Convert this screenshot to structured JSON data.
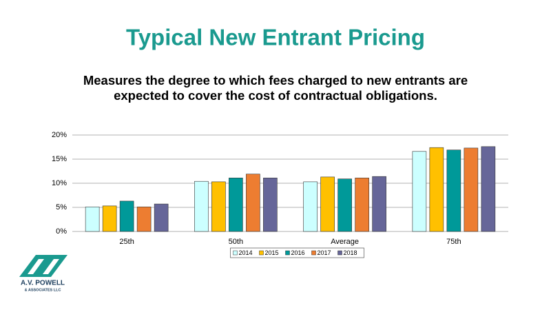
{
  "chart_data": {
    "type": "bar",
    "title": "Typical New Entrant Pricing",
    "subtitle": [
      "Measures the degree to which fees charged to new entrants are",
      "expected to cover the cost of contractual obligations."
    ],
    "categories": [
      "25th",
      "50th",
      "Average",
      "75th"
    ],
    "series": [
      {
        "name": "2014",
        "color": "#ccffff",
        "values": [
          5.1,
          10.4,
          10.3,
          16.6
        ]
      },
      {
        "name": "2015",
        "color": "#ffc000",
        "values": [
          5.3,
          10.3,
          11.3,
          17.4
        ]
      },
      {
        "name": "2016",
        "color": "#009999",
        "values": [
          6.3,
          11.1,
          10.9,
          16.9
        ]
      },
      {
        "name": "2017",
        "color": "#ed7d31",
        "values": [
          5.1,
          11.9,
          11.1,
          17.3
        ]
      },
      {
        "name": "2018",
        "color": "#666699",
        "values": [
          5.7,
          11.1,
          11.4,
          17.6
        ]
      }
    ],
    "ylim": [
      0,
      20
    ],
    "yticks": [
      {
        "value": 0,
        "label": "0%"
      },
      {
        "value": 5,
        "label": "5%"
      },
      {
        "value": 10,
        "label": "10%"
      },
      {
        "value": 15,
        "label": "15%"
      },
      {
        "value": 20,
        "label": "20%"
      }
    ],
    "grid": true,
    "legend": "bottom"
  },
  "logo": {
    "name": "A.V. POWELL",
    "sub": "& ASSOCIATES LLC"
  }
}
